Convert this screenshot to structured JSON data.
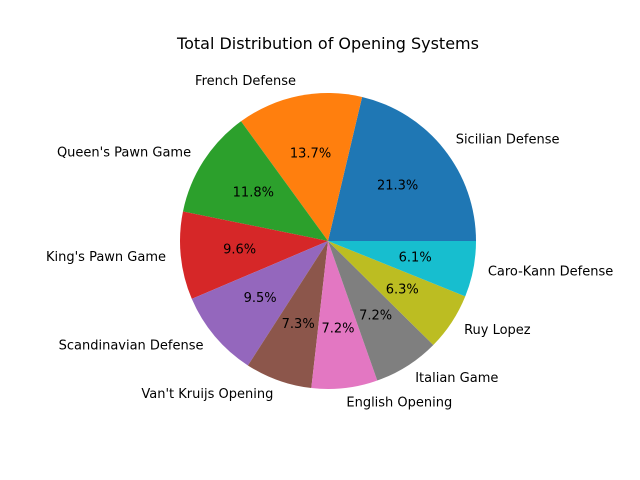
{
  "chart_data": {
    "type": "pie",
    "title": "Total Distribution of Opening Systems",
    "start_angle_deg": 0,
    "direction": "counterclockwise",
    "slices": [
      {
        "label": "Sicilian Defense",
        "value": 21.3,
        "pct_text": "21.3%",
        "color": "#1f77b4"
      },
      {
        "label": "French Defense",
        "value": 13.7,
        "pct_text": "13.7%",
        "color": "#ff7f0e"
      },
      {
        "label": "Queen's Pawn Game",
        "value": 11.8,
        "pct_text": "11.8%",
        "color": "#2ca02c"
      },
      {
        "label": "King's Pawn Game",
        "value": 9.6,
        "pct_text": "9.6%",
        "color": "#d62728"
      },
      {
        "label": "Scandinavian Defense",
        "value": 9.5,
        "pct_text": "9.5%",
        "color": "#9467bd"
      },
      {
        "label": "Van't Kruijs Opening",
        "value": 7.3,
        "pct_text": "7.3%",
        "color": "#8c564b"
      },
      {
        "label": "English Opening",
        "value": 7.2,
        "pct_text": "7.2%",
        "color": "#e377c2"
      },
      {
        "label": "Italian Game",
        "value": 7.2,
        "pct_text": "7.2%",
        "color": "#7f7f7f"
      },
      {
        "label": "Ruy Lopez",
        "value": 6.3,
        "pct_text": "6.3%",
        "color": "#bcbd22"
      },
      {
        "label": "Caro-Kann Defense",
        "value": 6.1,
        "pct_text": "6.1%",
        "color": "#17becf"
      }
    ]
  }
}
